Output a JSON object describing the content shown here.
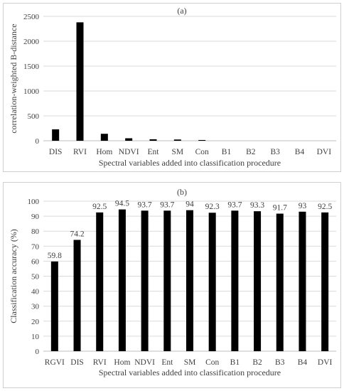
{
  "chart_data": [
    {
      "type": "bar",
      "panel_label": "(a)",
      "title": "",
      "xlabel": "Spectral variables added into classification procedure",
      "ylabel": "correlation-weighted B-distance",
      "categories": [
        "DIS",
        "RVI",
        "Hom",
        "NDVI",
        "Ent",
        "SM",
        "Con",
        "B1",
        "B2",
        "B3",
        "B4",
        "DVI"
      ],
      "values": [
        230,
        2380,
        140,
        50,
        30,
        25,
        15,
        0,
        0,
        0,
        0,
        0
      ],
      "ylim": [
        0,
        2500
      ],
      "yticks": [
        0,
        500,
        1000,
        1500,
        2000,
        2500
      ],
      "grid": true,
      "data_labels": false,
      "bar_color": "#000000"
    },
    {
      "type": "bar",
      "panel_label": "(b)",
      "title": "",
      "xlabel": "Spectral variables added into classification procedure",
      "ylabel": "Classification accuracy (%)",
      "categories": [
        "RGVI",
        "DIS",
        "RVI",
        "Hom",
        "NDVI",
        "Ent",
        "SM",
        "Con",
        "B1",
        "B2",
        "B3",
        "B4",
        "DVI"
      ],
      "values": [
        59.8,
        74.2,
        92.5,
        94.5,
        93.7,
        93.7,
        94,
        92.3,
        93.7,
        93.3,
        91.7,
        93,
        92.5
      ],
      "value_labels": [
        "59.8",
        "74.2",
        "92.5",
        "94.5",
        "93.7",
        "93.7",
        "94",
        "92.3",
        "93.7",
        "93.3",
        "91.7",
        "93",
        "92.5"
      ],
      "ylim": [
        0,
        100
      ],
      "yticks": [
        0,
        10,
        20,
        30,
        40,
        50,
        60,
        70,
        80,
        90,
        100
      ],
      "grid": true,
      "data_labels": true,
      "bar_color": "#000000"
    }
  ]
}
